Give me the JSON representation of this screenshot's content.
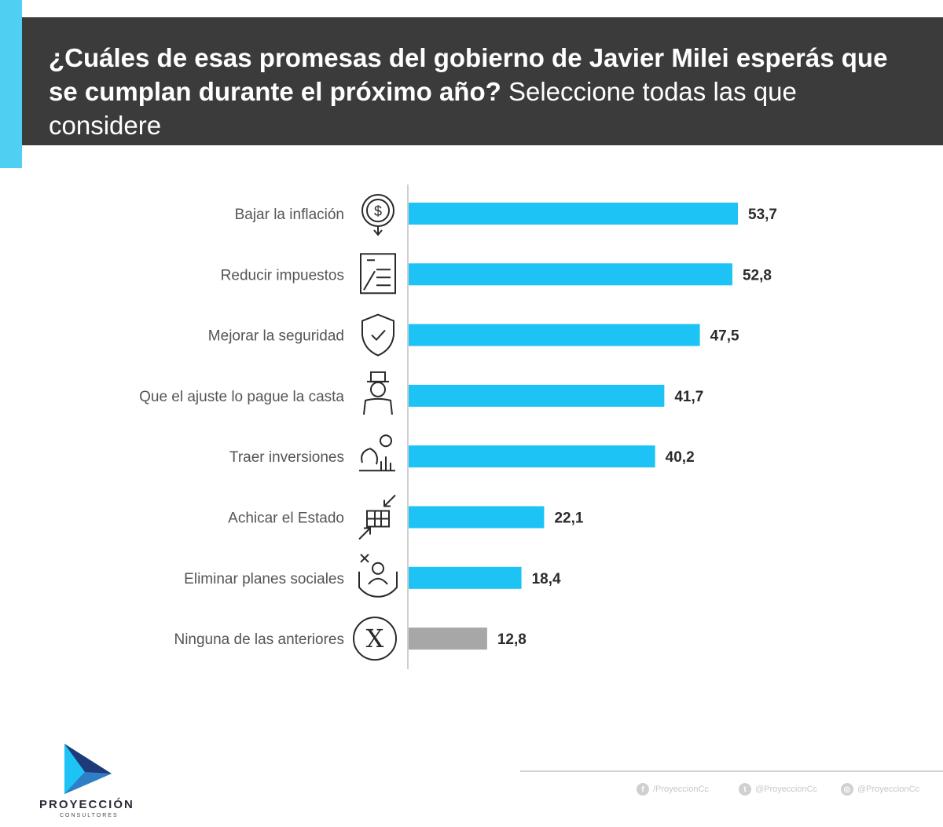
{
  "header": {
    "question_bold": "¿Cuáles de esas promesas del gobierno de Javier Milei esperás que se cumplan durante el próximo año?",
    "question_normal": "Seleccione todas las que considere"
  },
  "chart_data": {
    "type": "bar",
    "orientation": "horizontal",
    "categories": [
      "Bajar la inflación",
      "Reducir impuestos",
      "Mejorar la seguridad",
      "Que el ajuste lo pague la casta",
      "Traer inversiones",
      "Achicar el Estado",
      "Eliminar planes sociales",
      "Ninguna de las anteriores"
    ],
    "values": [
      53.7,
      52.8,
      47.5,
      41.7,
      40.2,
      22.1,
      18.4,
      12.8
    ],
    "value_labels": [
      "53,7",
      "52,8",
      "47,5",
      "41,7",
      "40,2",
      "22,1",
      "18,4",
      "12,8"
    ],
    "icons": [
      "dollar-down-icon",
      "tax-document-icon",
      "shield-check-icon",
      "politician-icon",
      "investment-icon",
      "downsize-building-icon",
      "remove-social-aid-icon",
      "x-circle-icon"
    ],
    "colors": [
      "#1ec3f6",
      "#1ec3f6",
      "#1ec3f6",
      "#1ec3f6",
      "#1ec3f6",
      "#1ec3f6",
      "#1ec3f6",
      "#a7a7a7"
    ],
    "xlim": [
      0,
      60
    ],
    "grid": false,
    "legend": "none"
  },
  "brand": {
    "name": "PROYECCIÓN",
    "tagline": "CONSULTORES",
    "colors": {
      "primary": "#1ec3f6",
      "dark": "#3b3b3b",
      "navy": "#1e3a78"
    }
  },
  "footer": {
    "facebook": "/ProyeccionCc",
    "twitter": "@ProyeccionCc",
    "instagram": "@ProyeccionCc"
  }
}
